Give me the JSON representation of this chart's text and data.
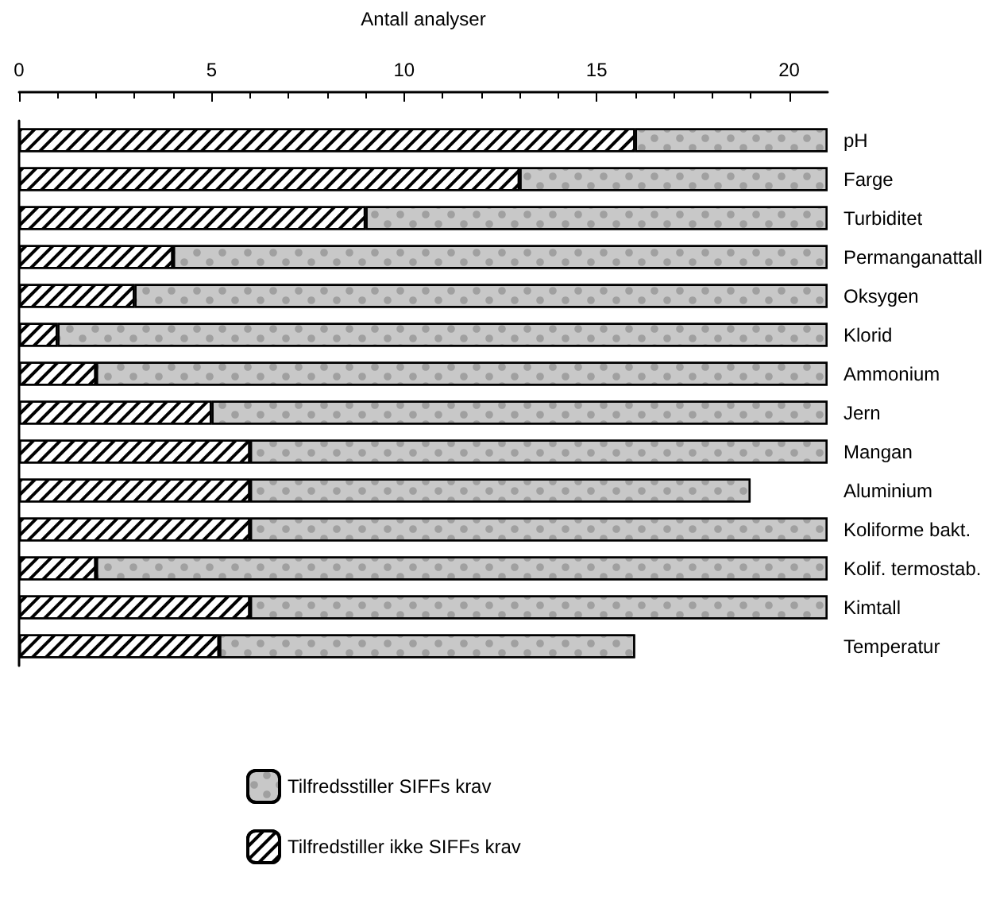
{
  "chart_data": {
    "type": "bar",
    "orientation": "horizontal",
    "stacked": true,
    "xlabel": "Antall analyser",
    "categories": [
      "pH",
      "Farge",
      "Turbiditet",
      "Permanganattall",
      "Oksygen",
      "Klorid",
      "Ammonium",
      "Jern",
      "Mangan",
      "Aluminium",
      "Koliforme bakt.",
      "Kolif. termostab.",
      "Kimtall",
      "Temperatur"
    ],
    "series": [
      {
        "name": "Tilfredstiller ikke SIFFs krav",
        "color": "#ffffff",
        "values": [
          16,
          13,
          9,
          4,
          3,
          1,
          2,
          5,
          6,
          6,
          6,
          2,
          6,
          5.2
        ]
      },
      {
        "name": "Tilfredsstiller SIFFs krav",
        "color": "#c8c8c8",
        "values": [
          5,
          8,
          12,
          17,
          18,
          20,
          19,
          16,
          15,
          13,
          15,
          19,
          15,
          10.8
        ]
      }
    ],
    "xlim": [
      0,
      21
    ],
    "xticks": [
      0,
      5,
      10,
      15,
      20
    ],
    "legend": "bottom",
    "grid": false
  }
}
